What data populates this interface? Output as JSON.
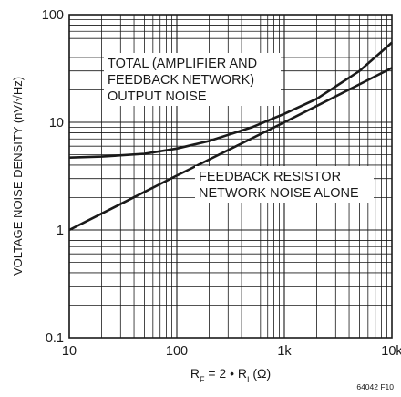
{
  "chart_data": {
    "type": "line",
    "x_scale": "log",
    "y_scale": "log",
    "xlim": [
      10,
      10000
    ],
    "ylim": [
      0.1,
      100
    ],
    "grid": true,
    "x_ticks": [
      "10",
      "100",
      "1k",
      "10k"
    ],
    "y_ticks": [
      "0.1",
      "1",
      "10",
      "100"
    ],
    "ylabel": "VOLTAGE NOISE DENSITY (nV/√Hz)",
    "xlabel": {
      "main_a": "R",
      "sub_a": "F",
      "middle": " = 2 • R",
      "sub_b": "I",
      "tail": " (Ω)"
    },
    "series": [
      {
        "name": "TOTAL (AMPLIFIER AND FEEDBACK NETWORK) OUTPUT NOISE",
        "label_lines": [
          "TOTAL (AMPLIFIER AND",
          "FEEDBACK NETWORK)",
          "OUTPUT NOISE"
        ],
        "color": "#1a1a1a",
        "x": [
          10,
          20,
          50,
          100,
          200,
          500,
          1000,
          2000,
          5000,
          10000
        ],
        "y": [
          4.7,
          4.8,
          5.1,
          5.7,
          6.7,
          9.0,
          12.0,
          16.5,
          30.0,
          55.0
        ]
      },
      {
        "name": "FEEDBACK RESISTOR NETWORK NOISE ALONE",
        "label_lines": [
          "FEEDBACK RESISTOR",
          "NETWORK NOISE ALONE"
        ],
        "color": "#1a1a1a",
        "x": [
          10,
          100,
          1000,
          10000
        ],
        "y": [
          1.0,
          3.2,
          10.0,
          32.0
        ]
      }
    ]
  },
  "figure_id": "64042 F10"
}
